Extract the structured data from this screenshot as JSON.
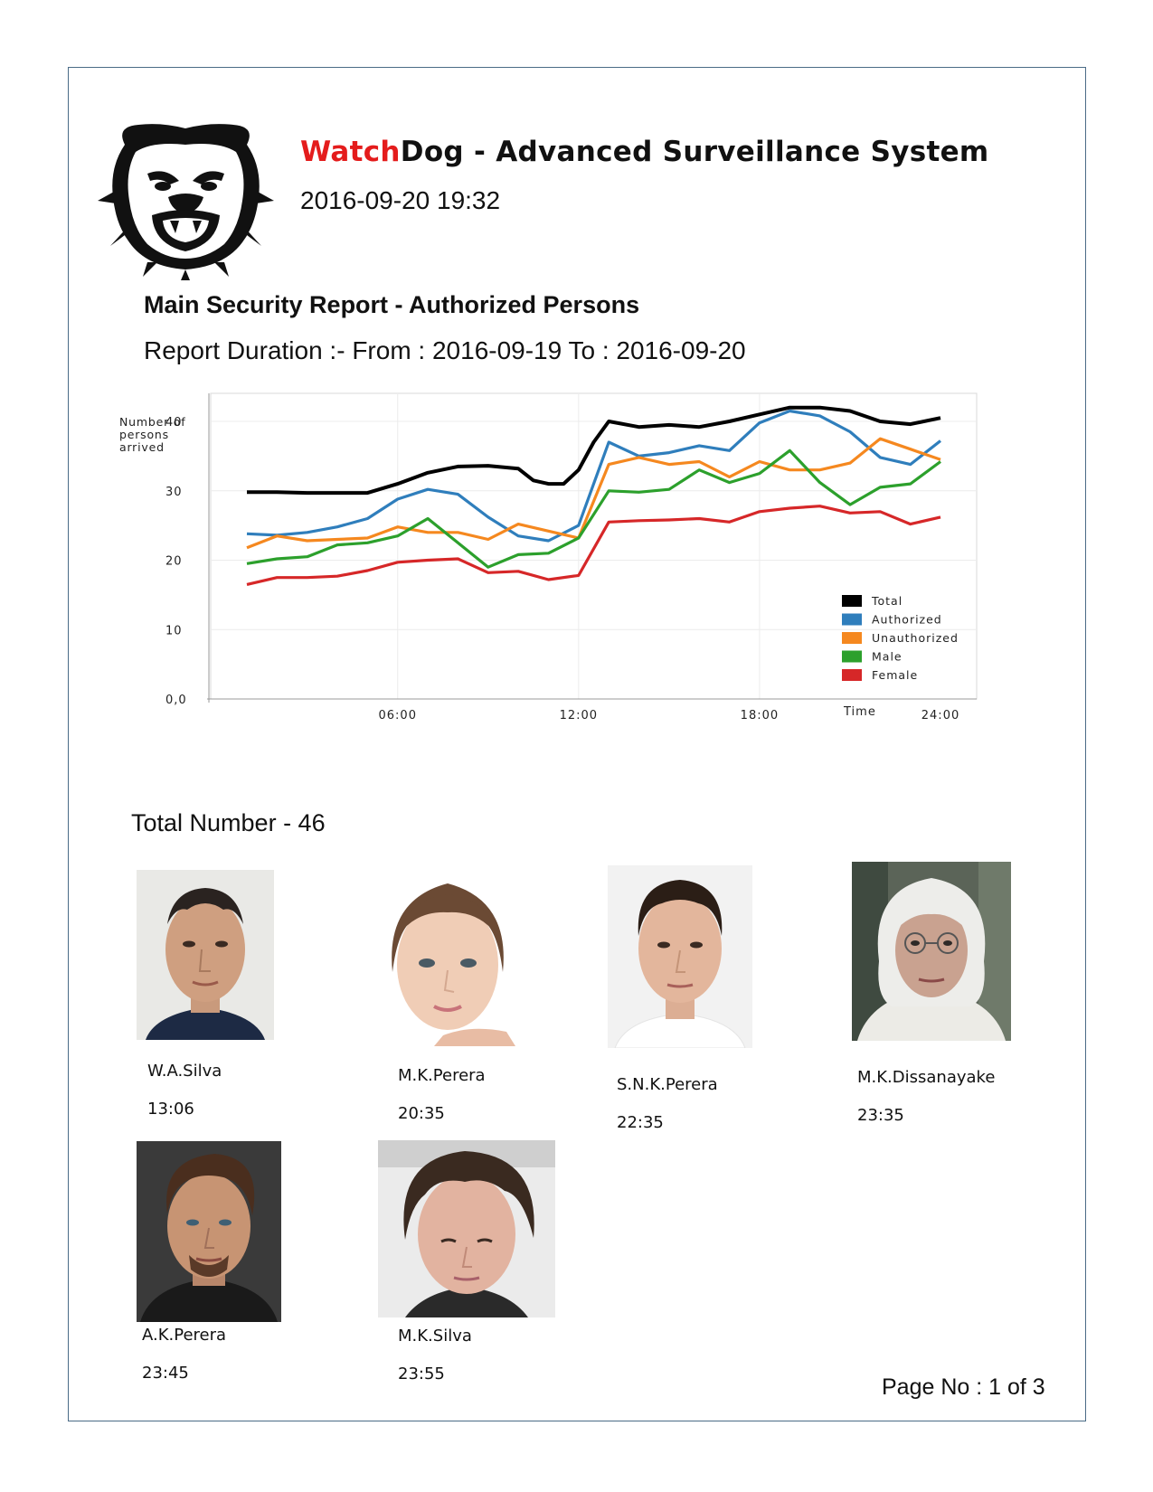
{
  "header": {
    "brand_accent": "Watch",
    "brand_rest": "Dog - Advanced Surveillance System",
    "datetime": "2016-09-20 19:32"
  },
  "report": {
    "title": "Main Security Report - Authorized Persons",
    "duration": "Report Duration :- From : 2016-09-19 To : 2016-09-20",
    "total": "Total Number - 46"
  },
  "chart_data": {
    "type": "line",
    "ylabel": "Number of persons arrived",
    "xlabel": "Time",
    "ylim": [
      0,
      43
    ],
    "xlim": [
      0,
      24
    ],
    "y_tick_labels": [
      "0,0",
      "10",
      "20",
      "30",
      "40"
    ],
    "y_ticks": [
      0,
      10,
      20,
      30,
      40
    ],
    "x_tick_labels": [
      "06:00",
      "12:00",
      "18:00",
      "24:00"
    ],
    "x_ticks": [
      6,
      12,
      18,
      24
    ],
    "grid": true,
    "legend_position": "bottom-right",
    "series": [
      {
        "name": "Total",
        "color": "#000000",
        "x": [
          1,
          2,
          3,
          4,
          5,
          6,
          7,
          8,
          9,
          10,
          10.5,
          11,
          11.5,
          12,
          12.5,
          13,
          14,
          15,
          16,
          17,
          18,
          19,
          20,
          21,
          22,
          23,
          24
        ],
        "y": [
          29.8,
          29.8,
          29.7,
          29.7,
          29.7,
          31.0,
          32.6,
          33.5,
          33.6,
          33.2,
          31.5,
          31.0,
          31.0,
          33.0,
          37.0,
          40.0,
          39.2,
          39.5,
          39.2,
          40.0,
          41.0,
          42.0,
          42.0,
          41.5,
          40.0,
          39.6,
          40.5
        ]
      },
      {
        "name": "Authorized",
        "color": "#2f7ebc",
        "x": [
          1,
          2,
          3,
          4,
          5,
          6,
          7,
          8,
          9,
          10,
          11,
          12,
          13,
          14,
          15,
          16,
          17,
          18,
          19,
          20,
          21,
          22,
          23,
          24
        ],
        "y": [
          23.8,
          23.6,
          24.0,
          24.8,
          26.0,
          28.8,
          30.2,
          29.5,
          26.2,
          23.5,
          22.8,
          25.0,
          37.0,
          35.0,
          35.5,
          36.5,
          35.8,
          39.8,
          41.5,
          40.8,
          38.5,
          34.8,
          33.8,
          37.2
        ]
      },
      {
        "name": "Unauthorized",
        "color": "#f5881f",
        "x": [
          1,
          2,
          3,
          4,
          5,
          6,
          7,
          8,
          9,
          10,
          11,
          12,
          13,
          14,
          15,
          16,
          17,
          18,
          19,
          20,
          21,
          22,
          23,
          24
        ],
        "y": [
          21.8,
          23.5,
          22.8,
          23.0,
          23.2,
          24.8,
          24.0,
          24.0,
          23.0,
          25.2,
          24.2,
          23.2,
          33.8,
          34.8,
          33.8,
          34.2,
          32.0,
          34.2,
          33.0,
          33.0,
          34.0,
          37.5,
          36.0,
          34.5
        ]
      },
      {
        "name": "Male",
        "color": "#2ca02c",
        "x": [
          1,
          2,
          3,
          4,
          5,
          6,
          7,
          8,
          9,
          10,
          11,
          12,
          13,
          14,
          15,
          16,
          17,
          18,
          19,
          20,
          21,
          22,
          23,
          24
        ],
        "y": [
          19.5,
          20.2,
          20.5,
          22.2,
          22.5,
          23.5,
          26.0,
          22.5,
          19.0,
          20.8,
          21.0,
          23.2,
          30.0,
          29.8,
          30.2,
          33.0,
          31.2,
          32.5,
          35.8,
          31.2,
          28.0,
          30.5,
          31.0,
          34.2
        ]
      },
      {
        "name": "Female",
        "color": "#d62728",
        "x": [
          1,
          2,
          3,
          4,
          5,
          6,
          7,
          8,
          9,
          10,
          11,
          12,
          13,
          14,
          15,
          16,
          17,
          18,
          19,
          20,
          21,
          22,
          23,
          24
        ],
        "y": [
          16.5,
          17.5,
          17.5,
          17.7,
          18.5,
          19.7,
          20.0,
          20.2,
          18.2,
          18.4,
          17.2,
          17.8,
          25.5,
          25.7,
          25.8,
          26.0,
          25.5,
          27.0,
          27.5,
          27.8,
          26.8,
          27.0,
          25.2,
          26.2
        ]
      }
    ]
  },
  "persons": [
    {
      "name": "W.A.Silva",
      "time": "13:06"
    },
    {
      "name": "M.K.Perera",
      "time": "20:35"
    },
    {
      "name": "S.N.K.Perera",
      "time": "22:35"
    },
    {
      "name": "M.K.Dissanayake",
      "time": "23:35"
    },
    {
      "name": "A.K.Perera",
      "time": "23:45"
    },
    {
      "name": "M.K.Silva",
      "time": "23:55"
    }
  ],
  "footer": {
    "page_label": "Page No : 1 of",
    "page_total": "3"
  }
}
